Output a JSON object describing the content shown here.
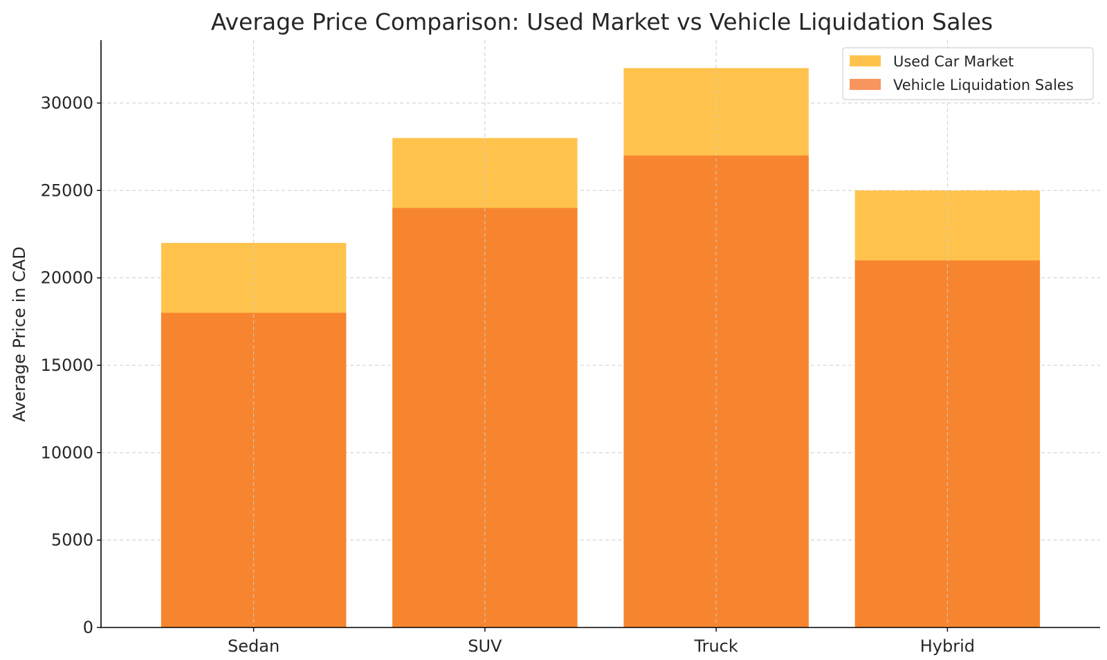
{
  "chart_data": {
    "type": "bar",
    "title": "Average Price Comparison: Used Market vs Vehicle Liquidation Sales",
    "xlabel": "",
    "ylabel": "Average Price in CAD",
    "categories": [
      "Sedan",
      "SUV",
      "Truck",
      "Hybrid"
    ],
    "series": [
      {
        "name": "Used Car Market",
        "values": [
          22000,
          28000,
          32000,
          25000
        ],
        "color": "#FFC34D"
      },
      {
        "name": "Vehicle Liquidation Sales",
        "values": [
          18000,
          24000,
          27000,
          21000
        ],
        "color": "#F7852F"
      }
    ],
    "legend_color_liquidation": "#F8955E",
    "ylim": [
      0,
      33600
    ],
    "yticks": [
      0,
      5000,
      10000,
      15000,
      20000,
      25000,
      30000
    ],
    "grid": true,
    "legend": "top-right",
    "overlaid": true
  }
}
